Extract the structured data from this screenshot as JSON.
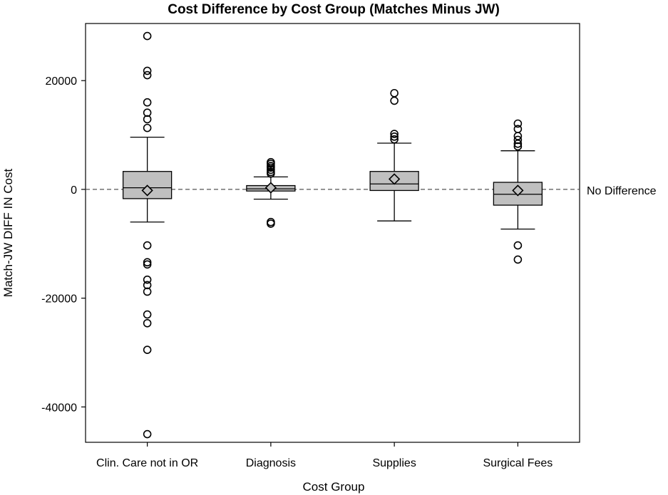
{
  "chart_data": {
    "type": "box",
    "title": "Cost Difference by Cost Group (Matches Minus JW)",
    "xlabel": "Cost Group",
    "ylabel": "Match-JW DIFF IN Cost",
    "ylim": [
      -46500,
      30500
    ],
    "yticks": [
      20000,
      0,
      -20000,
      -40000
    ],
    "ytick_labels": [
      "20000",
      "0",
      "-20000",
      "-40000"
    ],
    "reference_line": {
      "y": 0,
      "label": "No Difference",
      "style": "dashed"
    },
    "box_fill": "#c0c0c0",
    "categories": [
      "Clin. Care not in OR",
      "Diagnosis",
      "Supplies",
      "Surgical Fees"
    ],
    "boxes": [
      {
        "category": "Clin. Care not in OR",
        "whisker_low": -6000,
        "q1": -1700,
        "median": 300,
        "q3": 3300,
        "whisker_high": 9600,
        "mean": -200,
        "outliers": [
          28200,
          21800,
          21000,
          16000,
          14100,
          12900,
          11300,
          -10300,
          -13400,
          -13800,
          -16600,
          -17600,
          -18800,
          -23000,
          -24600,
          -29500,
          -45000
        ]
      },
      {
        "category": "Diagnosis",
        "whisker_low": -1800,
        "q1": -300,
        "median": 100,
        "q3": 700,
        "whisker_high": 2300,
        "mean": 300,
        "outliers": [
          5000,
          4700,
          4300,
          4000,
          3600,
          3200,
          2900,
          -6000,
          -6300
        ]
      },
      {
        "category": "Supplies",
        "whisker_low": -5800,
        "q1": -200,
        "median": 1000,
        "q3": 3300,
        "whisker_high": 8500,
        "mean": 1900,
        "outliers": [
          17700,
          16300,
          10200,
          9700,
          9200
        ]
      },
      {
        "category": "Surgical Fees",
        "whisker_low": -7300,
        "q1": -2900,
        "median": -900,
        "q3": 1300,
        "whisker_high": 7100,
        "mean": -200,
        "outliers": [
          12100,
          11100,
          9800,
          9100,
          8400,
          7900,
          -10300,
          -12900
        ]
      }
    ]
  }
}
